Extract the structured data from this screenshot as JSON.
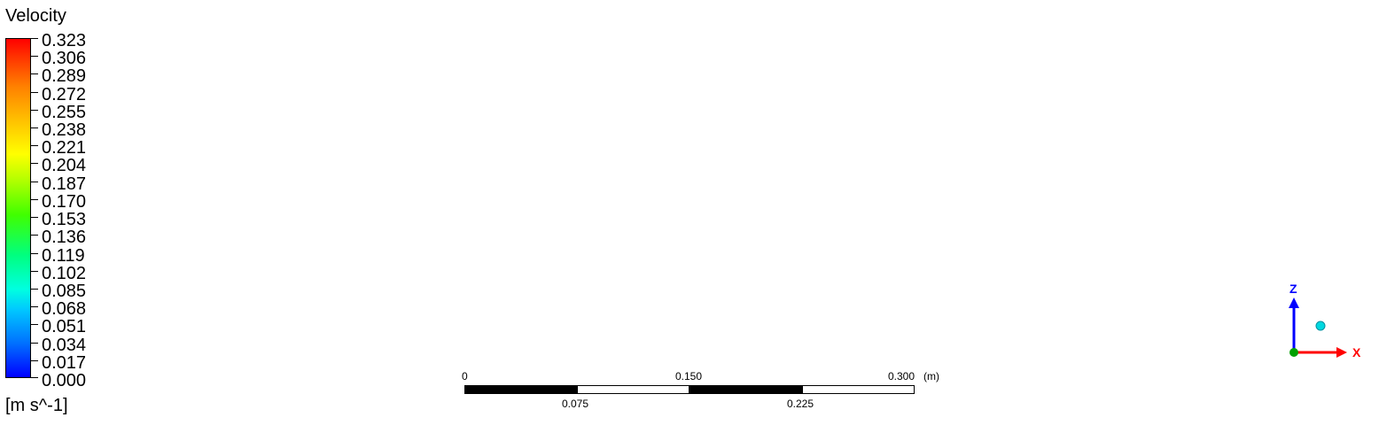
{
  "legend": {
    "title": "Velocity",
    "unit": "[m s^-1]",
    "labels": [
      "0.323",
      "0.306",
      "0.289",
      "0.272",
      "0.255",
      "0.238",
      "0.221",
      "0.204",
      "0.187",
      "0.170",
      "0.153",
      "0.136",
      "0.119",
      "0.102",
      "0.085",
      "0.068",
      "0.051",
      "0.034",
      "0.017",
      "0.000"
    ],
    "min": 0.0,
    "max": 0.323,
    "colormap": [
      "#0000ff",
      "#0070ff",
      "#00c8ff",
      "#00ffe0",
      "#00ff80",
      "#40ff00",
      "#b0ff00",
      "#ffff00",
      "#ffc000",
      "#ff8000",
      "#ff0000"
    ]
  },
  "scale_bar": {
    "top_labels": [
      "0",
      "0.150",
      "0.300"
    ],
    "unit": "(m)",
    "bottom_labels": [
      "0.075",
      "0.225"
    ]
  },
  "axes_triad": {
    "z_label": "Z",
    "x_label": "X",
    "z_color": "#0000ff",
    "x_color": "#ff0000",
    "origin_color": "#00a000"
  }
}
